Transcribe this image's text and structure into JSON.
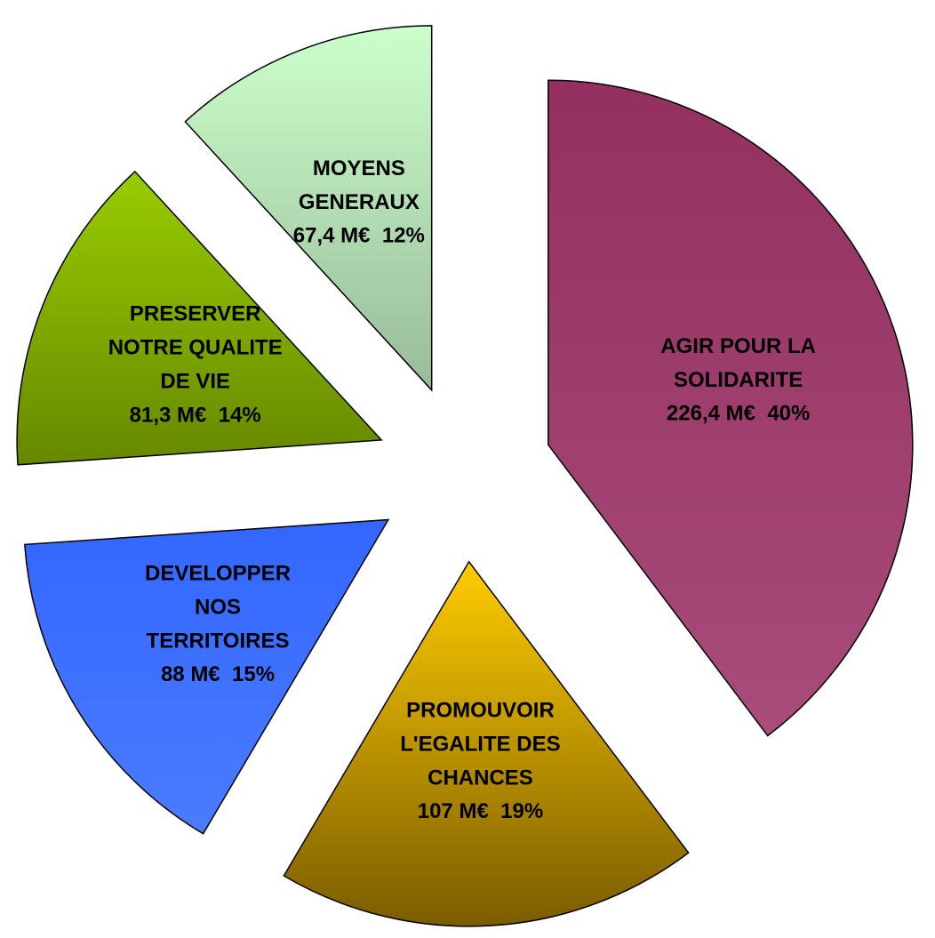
{
  "chart_data": {
    "type": "pie",
    "categories": [
      [
        "AGIR POUR LA",
        "SOLIDARITE"
      ],
      [
        "PROMOUVOIR",
        "L'EGALITE DES",
        "CHANCES"
      ],
      [
        "DEVELOPPER",
        "NOS",
        "TERRITOIRES"
      ],
      [
        "PRESERVER",
        "NOTRE QUALITE",
        "DE VIE"
      ],
      [
        "MOYENS",
        "GENERAUX"
      ]
    ],
    "values": [
      226.4,
      107,
      88,
      81.3,
      67.4
    ],
    "value_labels": [
      "226,4 M€",
      "107 M€",
      "88 M€",
      "81,3 M€",
      "67,4 M€"
    ],
    "percents": [
      40,
      19,
      15,
      14,
      12
    ],
    "percent_labels": [
      "40%",
      "19%",
      "15%",
      "14%",
      "12%"
    ],
    "colors": [
      [
        "#933060",
        "#a84c7a"
      ],
      [
        "#ffcc00",
        "#7a5c00"
      ],
      [
        "#3366ff",
        "#4a7cff"
      ],
      [
        "#99cc00",
        "#668800"
      ],
      [
        "#ccffcc",
        "#99bb99"
      ]
    ],
    "start_angle": 0,
    "direction": "clockwise",
    "exploded": true
  }
}
